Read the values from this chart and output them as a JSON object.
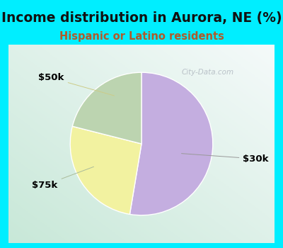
{
  "title": "Income distribution in Aurora, NE (%)",
  "subtitle": "Hispanic or Latino residents",
  "title_color": "#111111",
  "subtitle_color": "#b05a2a",
  "bg_outer": "#00eeff",
  "bg_inner_colors": [
    "#c8e8d8",
    "#e8f5f0",
    "#f0faf6",
    "#ffffff"
  ],
  "slices": [
    {
      "label": "$30k",
      "value": 50,
      "color": "#c4aee0"
    },
    {
      "label": "$50k",
      "value": 25,
      "color": "#f2f2a0"
    },
    {
      "label": "$75k",
      "value": 20,
      "color": "#bcd4b0"
    }
  ],
  "startangle": 90,
  "counterclock": false,
  "watermark": "City-Data.com",
  "label_fontsize": 9.5,
  "title_fontsize": 13.5,
  "subtitle_fontsize": 10.5
}
